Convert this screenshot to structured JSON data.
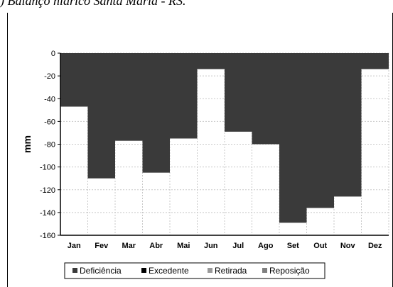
{
  "caption": ") Balanço hídrico Santa Maria - RS.",
  "chart_data": {
    "type": "bar",
    "title": "",
    "xlabel": "",
    "ylabel": "mm",
    "ylim": [
      -160,
      0
    ],
    "yticks": [
      0,
      -20,
      -40,
      -60,
      -80,
      -100,
      -120,
      -140,
      -160
    ],
    "grid": true,
    "legend_position": "bottom",
    "categories": [
      "Jan",
      "Fev",
      "Mar",
      "Abr",
      "Mai",
      "Jun",
      "Jul",
      "Ago",
      "Set",
      "Out",
      "Nov",
      "Dez"
    ],
    "series": [
      {
        "name": "Deficiência",
        "color": "#3a3a3a",
        "values": [
          -47,
          -110,
          -77,
          -105,
          -75,
          -14,
          -69,
          -80,
          -149,
          -136,
          -126,
          -14
        ]
      },
      {
        "name": "Excedente",
        "color": "#000000",
        "values": [
          0,
          0,
          0,
          0,
          0,
          0,
          0,
          0,
          0,
          0,
          0,
          0
        ]
      },
      {
        "name": "Retirada",
        "color": "#9a9a9a",
        "values": [
          0,
          0,
          0,
          0,
          0,
          0,
          0,
          0,
          0,
          0,
          0,
          0
        ]
      },
      {
        "name": "Reposição",
        "color": "#7f7f7f",
        "values": [
          0,
          0,
          0,
          0,
          0,
          0,
          0,
          0,
          0,
          0,
          0,
          0
        ]
      }
    ]
  }
}
